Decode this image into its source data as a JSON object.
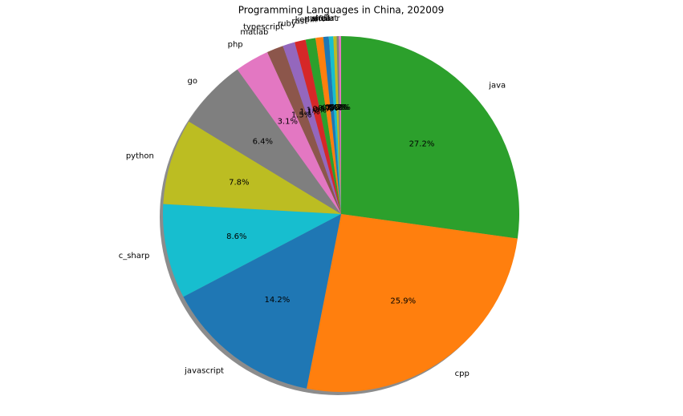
{
  "chart_data": {
    "type": "pie",
    "title": "Programming Languages in China, 202009",
    "categories": [
      "java",
      "cpp",
      "javascript",
      "c_sharp",
      "python",
      "go",
      "php",
      "matlab",
      "typescript",
      "ruby",
      "rust",
      "kotlin",
      "swift",
      "shell",
      "scala",
      "dart",
      "r"
    ],
    "values": [
      27.2,
      25.9,
      14.2,
      8.6,
      7.8,
      6.4,
      3.1,
      1.5,
      1.1,
      1.0,
      0.9,
      0.7,
      0.5,
      0.4,
      0.3,
      0.2,
      0.2
    ],
    "value_labels": [
      "27.2%",
      "25.9%",
      "14.2%",
      "8.6%",
      "7.8%",
      "6.4%",
      "3.1%",
      "1.5%",
      "1.1%",
      "1.0%",
      "0.9%",
      "0.7%",
      "0.5%",
      "0.4%",
      "0.3%",
      "0.2%",
      "0.2%"
    ],
    "colors": [
      "#2ca02c",
      "#ff7f0e",
      "#1f77b4",
      "#17becf",
      "#bcbd22",
      "#7f7f7f",
      "#e377c2",
      "#8c564b",
      "#9467bd",
      "#d62728",
      "#2ca02c",
      "#ff7f0e",
      "#1f77b4",
      "#17becf",
      "#bcbd22",
      "#7f7f7f",
      "#e377c2"
    ],
    "shadow": true
  }
}
